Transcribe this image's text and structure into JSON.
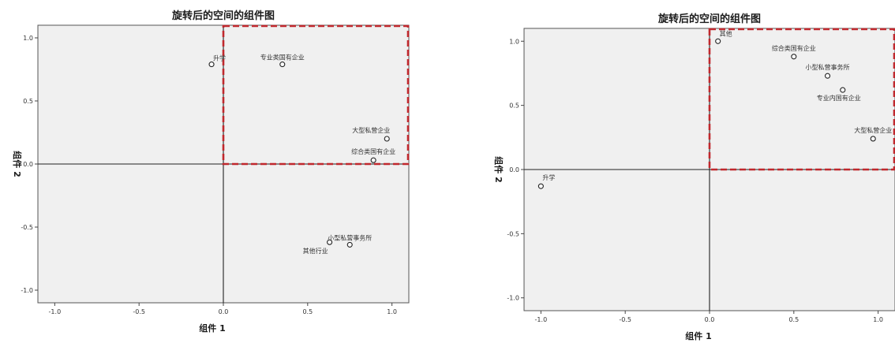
{
  "chart_data": [
    {
      "type": "scatter",
      "title": "旋转后的空间的组件图",
      "xlabel": "组件 1",
      "ylabel": "组件 2",
      "xlim": [
        -1.1,
        1.1
      ],
      "ylim": [
        -1.1,
        1.1
      ],
      "xticks": [
        "-1.0",
        "-0.5",
        "0.0",
        "0.5",
        "1.0"
      ],
      "yticks": [
        "-1.0",
        "-0.5",
        "0.0",
        "0.5",
        "1.0"
      ],
      "grid": false,
      "colors": {
        "background": "#f0f0f0",
        "highlight": "#c0282d",
        "point": "#222222"
      },
      "highlight_box": {
        "x": [
          0,
          1.1
        ],
        "y": [
          0,
          1.1
        ]
      },
      "points": [
        {
          "label": "升学",
          "x": -0.07,
          "y": 0.79
        },
        {
          "label": "专业类国有企业",
          "x": 0.35,
          "y": 0.79
        },
        {
          "label": "大型私营企业",
          "x": 0.97,
          "y": 0.2
        },
        {
          "label": "综合类国有企业",
          "x": 0.89,
          "y": 0.03
        },
        {
          "label": "小型私营事务所",
          "x": 0.75,
          "y": -0.64
        },
        {
          "label": "其他行业",
          "x": 0.63,
          "y": -0.62
        }
      ]
    },
    {
      "type": "scatter",
      "title": "旋转后的空间的组件图",
      "xlabel": "组件 1",
      "ylabel": "组件 2",
      "xlim": [
        -1.1,
        1.1
      ],
      "ylim": [
        -1.1,
        1.1
      ],
      "xticks": [
        "-1.0",
        "-0.5",
        "0.0",
        "0.5",
        "1.0"
      ],
      "yticks": [
        "-1.0",
        "-0.5",
        "0.0",
        "0.5",
        "1.0"
      ],
      "grid": false,
      "colors": {
        "background": "#f0f0f0",
        "highlight": "#c0282d",
        "point": "#222222"
      },
      "highlight_box": {
        "x": [
          0,
          1.1
        ],
        "y": [
          0,
          1.1
        ]
      },
      "points": [
        {
          "label": "其他",
          "x": 0.05,
          "y": 1.0
        },
        {
          "label": "综合类国有企业",
          "x": 0.5,
          "y": 0.88
        },
        {
          "label": "小型私营事务所",
          "x": 0.7,
          "y": 0.73
        },
        {
          "label": "专业内国有企业",
          "x": 0.79,
          "y": 0.62
        },
        {
          "label": "大型私营企业",
          "x": 0.97,
          "y": 0.24
        },
        {
          "label": "升学",
          "x": -1.0,
          "y": -0.13
        }
      ]
    }
  ]
}
